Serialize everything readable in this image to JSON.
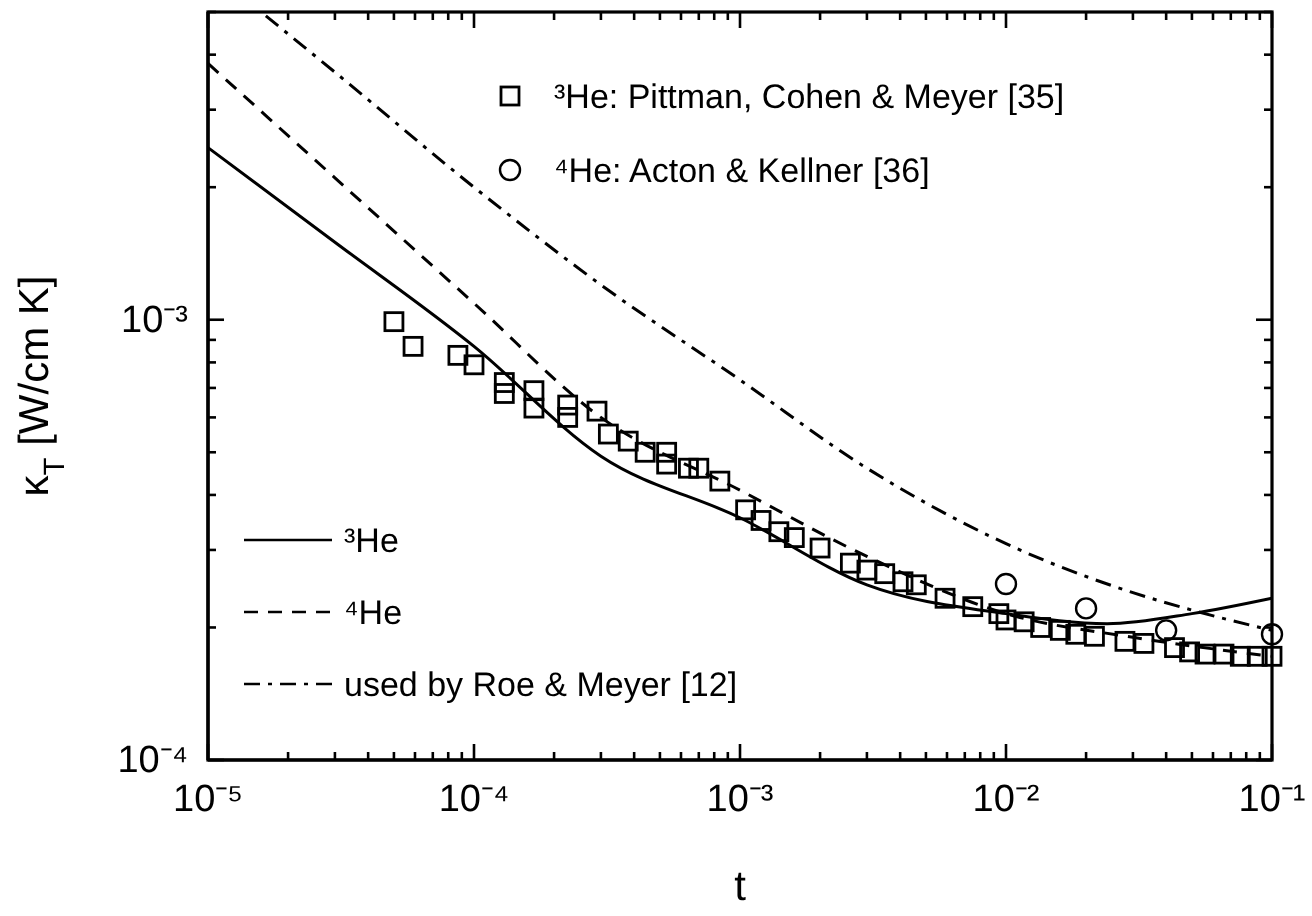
{
  "chart_data": {
    "type": "line",
    "xlabel": "t",
    "ylabel": "κ$_{T}$  [W/cm K]",
    "log": "xy",
    "legend": "bottom left",
    "grid": false,
    "xlim": [
      1e-05,
      0.1
    ],
    "xticks": [
      {
        "value": 1e-05,
        "label": "10⁻⁵"
      },
      {
        "value": 2e-05,
        "label": null
      },
      {
        "value": 3e-05,
        "label": null
      },
      {
        "value": 4e-05,
        "label": null
      },
      {
        "value": 5e-05,
        "label": null
      },
      {
        "value": 6e-05,
        "label": null
      },
      {
        "value": 7e-05,
        "label": null
      },
      {
        "value": 8e-05,
        "label": null
      },
      {
        "value": 9e-05,
        "label": null
      },
      {
        "value": 0.0001,
        "label": "10⁻⁴"
      },
      {
        "value": 0.0002,
        "label": null
      },
      {
        "value": 0.0003,
        "label": null
      },
      {
        "value": 0.0004,
        "label": null
      },
      {
        "value": 0.0005,
        "label": null
      },
      {
        "value": 0.0006,
        "label": null
      },
      {
        "value": 0.0007,
        "label": null
      },
      {
        "value": 0.0008,
        "label": null
      },
      {
        "value": 0.0009,
        "label": null
      },
      {
        "value": 0.001,
        "label": "10⁻³"
      },
      {
        "value": 0.002,
        "label": null
      },
      {
        "value": 0.003,
        "label": null
      },
      {
        "value": 0.004,
        "label": null
      },
      {
        "value": 0.005,
        "label": null
      },
      {
        "value": 0.006,
        "label": null
      },
      {
        "value": 0.007,
        "label": null
      },
      {
        "value": 0.008,
        "label": null
      },
      {
        "value": 0.009,
        "label": null
      },
      {
        "value": 0.01,
        "label": "10⁻²"
      },
      {
        "value": 0.02,
        "label": null
      },
      {
        "value": 0.03,
        "label": null
      },
      {
        "value": 0.04,
        "label": null
      },
      {
        "value": 0.05,
        "label": null
      },
      {
        "value": 0.06,
        "label": null
      },
      {
        "value": 0.07,
        "label": null
      },
      {
        "value": 0.08,
        "label": null
      },
      {
        "value": 0.09,
        "label": null
      },
      {
        "value": 0.1,
        "label": "10⁻¹"
      }
    ],
    "ylim": [
      0.0001,
      0.005
    ],
    "yticks": [
      {
        "value": 0.0001,
        "label": "10⁻⁴"
      },
      {
        "value": 0.0002,
        "label": null
      },
      {
        "value": 0.0003,
        "label": null
      },
      {
        "value": 0.0004,
        "label": null
      },
      {
        "value": 0.0005,
        "label": null
      },
      {
        "value": 0.0006,
        "label": null
      },
      {
        "value": 0.0007,
        "label": null
      },
      {
        "value": 0.0008,
        "label": null
      },
      {
        "value": 0.0009,
        "label": null
      },
      {
        "value": 0.001,
        "label": "10⁻³"
      },
      {
        "value": 0.002,
        "label": null
      },
      {
        "value": 0.003,
        "label": null
      },
      {
        "value": 0.004,
        "label": null
      },
      {
        "value": 0.005,
        "label": null
      }
    ],
    "series": [
      {
        "name": "³He: Pittman, Cohen & Meyer [35]",
        "type": "scatter",
        "marker": "square",
        "color": "#000000",
        "x": [
          5e-05,
          5.9e-05,
          8.7e-05,
          0.0001,
          0.00013,
          0.00013,
          0.000168,
          0.000168,
          0.000225,
          0.000225,
          0.00029,
          0.00032,
          0.00038,
          0.00044,
          0.00053,
          0.00053,
          0.00064,
          0.0007,
          0.00084,
          0.00105,
          0.0012,
          0.0014,
          0.0016,
          0.002,
          0.0026,
          0.003,
          0.0035,
          0.0041,
          0.0046,
          0.0059,
          0.0075,
          0.0094,
          0.01,
          0.0117,
          0.0135,
          0.016,
          0.0183,
          0.0215,
          0.028,
          0.033,
          0.043,
          0.049,
          0.056,
          0.066,
          0.076,
          0.088,
          0.1
        ],
        "values": [
          0.00099,
          0.00087,
          0.00083,
          0.00079,
          0.00072,
          0.00068,
          0.00069,
          0.00063,
          0.00064,
          0.0006,
          0.00062,
          0.00055,
          0.00053,
          0.0005,
          0.0005,
          0.00047,
          0.00046,
          0.00046,
          0.00043,
          0.00037,
          0.00035,
          0.00033,
          0.00032,
          0.000303,
          0.00028,
          0.00027,
          0.000265,
          0.000254,
          0.00025,
          0.000233,
          0.000223,
          0.000215,
          0.000208,
          0.000206,
          0.0002,
          0.000197,
          0.000193,
          0.000191,
          0.000186,
          0.000184,
          0.00018,
          0.000176,
          0.000174,
          0.000174,
          0.000172,
          0.000172,
          0.000172
        ]
      },
      {
        "name": "⁴He: Acton & Kellner [36]",
        "type": "scatter",
        "marker": "circle",
        "color": "#000000",
        "x": [
          0.01,
          0.02,
          0.04,
          0.1
        ],
        "values": [
          0.000251,
          0.000221,
          0.000197,
          0.000193
        ]
      },
      {
        "name": "³He",
        "line_style": "solid",
        "color": "#000000",
        "x": [
          1e-05,
          3e-05,
          0.0001,
          0.0003,
          0.001,
          0.003,
          0.01,
          0.024,
          0.05,
          0.1
        ],
        "values": [
          0.00246,
          0.0015,
          0.00087,
          0.00049,
          0.000355,
          0.00025,
          0.000215,
          0.000204,
          0.000215,
          0.000233
        ]
      },
      {
        "name": "⁴He",
        "line_style": "dashed",
        "color": "#000000",
        "x": [
          1e-05,
          3e-05,
          0.0001,
          0.0003,
          0.001,
          0.003,
          0.01,
          0.03,
          0.1
        ],
        "values": [
          0.00382,
          0.0021,
          0.00109,
          0.0006,
          0.00041,
          0.00029,
          0.000215,
          0.00019,
          0.000172
        ]
      },
      {
        "name": "used by Roe & Meyer [12]",
        "line_style": "dashdot",
        "color": "#000000",
        "x": [
          1.65e-05,
          3e-05,
          0.0001,
          0.0003,
          0.001,
          0.003,
          0.01,
          0.03,
          0.05,
          0.1
        ],
        "values": [
          0.0049,
          0.00365,
          0.002,
          0.0012,
          0.00073,
          0.00046,
          0.00031,
          0.00024,
          0.000219,
          0.000197
        ]
      }
    ]
  }
}
